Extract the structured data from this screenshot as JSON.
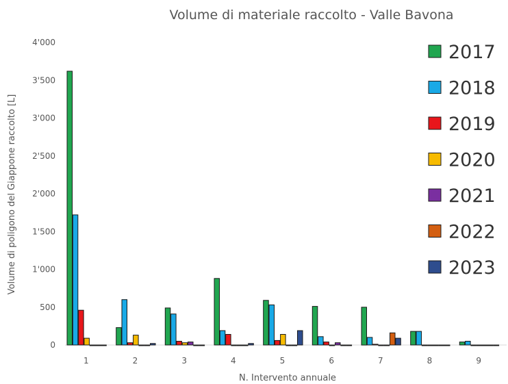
{
  "chart_data": {
    "type": "bar",
    "title": "Volume di materiale raccolto - Valle Bavona",
    "xlabel": "N. Intervento annuale",
    "ylabel": "Volume di poligono del Giappone raccolto [L]",
    "categories": [
      "1",
      "2",
      "3",
      "4",
      "5",
      "6",
      "7",
      "8",
      "9"
    ],
    "ylim": [
      0,
      4000
    ],
    "yticks": [
      0,
      500,
      1000,
      1500,
      2000,
      2500,
      3000,
      3500,
      4000
    ],
    "ytick_labels": [
      "0",
      "500",
      "1'000",
      "1'500",
      "2'000",
      "2'500",
      "3'000",
      "3'500",
      "4'000"
    ],
    "grid": false,
    "legend_position": "right",
    "series": [
      {
        "name": "2017",
        "color": "#21a650",
        "values": [
          3620,
          230,
          490,
          880,
          590,
          510,
          500,
          180,
          40
        ]
      },
      {
        "name": "2018",
        "color": "#19a9e6",
        "values": [
          1720,
          600,
          410,
          190,
          530,
          110,
          100,
          180,
          50
        ]
      },
      {
        "name": "2019",
        "color": "#e8161b",
        "values": [
          460,
          30,
          50,
          140,
          60,
          40,
          10,
          0,
          0
        ]
      },
      {
        "name": "2020",
        "color": "#f7bb00",
        "values": [
          90,
          130,
          30,
          0,
          140,
          0,
          0,
          0,
          0
        ]
      },
      {
        "name": "2021",
        "color": "#7a2fa0",
        "values": [
          0,
          0,
          40,
          0,
          0,
          30,
          0,
          0,
          0
        ]
      },
      {
        "name": "2022",
        "color": "#d35f12",
        "values": [
          0,
          0,
          0,
          0,
          0,
          0,
          160,
          0,
          0
        ]
      },
      {
        "name": "2023",
        "color": "#2e4d8e",
        "values": [
          0,
          20,
          0,
          20,
          190,
          0,
          90,
          0,
          0
        ]
      }
    ]
  }
}
